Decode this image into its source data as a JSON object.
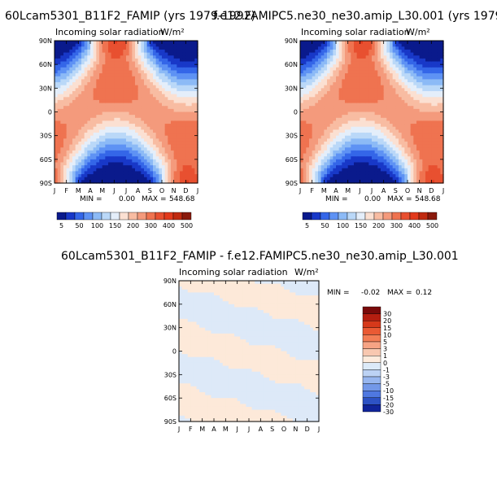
{
  "chart_data": [
    {
      "type": "heatmap",
      "title": "60Lcam5301_B11F2_FAMIP (yrs 1979-1992)",
      "subtitle": "Incoming solar radiation",
      "units": "W/m²",
      "x_ticks": [
        "J",
        "F",
        "M",
        "A",
        "M",
        "J",
        "J",
        "A",
        "S",
        "O",
        "N",
        "D",
        "J"
      ],
      "y_ticks": [
        "90N",
        "60N",
        "30N",
        "0",
        "30S",
        "60S",
        "90S"
      ],
      "stats": {
        "min_label": "MIN =",
        "min": "0.00",
        "max_label": "MAX =",
        "max": "548.68"
      },
      "colorbar_labels": [
        "5",
        "50",
        "100",
        "150",
        "200",
        "300",
        "400",
        "500"
      ]
    },
    {
      "type": "heatmap",
      "title": "f.e12.FAMIPC5.ne30_ne30.amip_L30.001 (yrs 1979-",
      "subtitle": "Incoming solar radiation",
      "units": "W/m²",
      "x_ticks": [
        "J",
        "F",
        "M",
        "A",
        "M",
        "J",
        "J",
        "A",
        "S",
        "O",
        "N",
        "D",
        "J"
      ],
      "y_ticks": [
        "90N",
        "60N",
        "30N",
        "0",
        "30S",
        "60S",
        "90S"
      ],
      "stats": {
        "min_label": "MIN =",
        "min": "0.00",
        "max_label": "MAX =",
        "max": "548.68"
      },
      "colorbar_labels": [
        "5",
        "50",
        "100",
        "150",
        "200",
        "300",
        "400",
        "500"
      ]
    },
    {
      "type": "heatmap",
      "title": "60Lcam5301_B11F2_FAMIP - f.e12.FAMIPC5.ne30_ne30.amip_L30.001",
      "subtitle": "Incoming solar radiation",
      "units": "W/m²",
      "x_ticks": [
        "J",
        "F",
        "M",
        "A",
        "M",
        "J",
        "J",
        "A",
        "S",
        "O",
        "N",
        "D",
        "J"
      ],
      "y_ticks": [
        "90N",
        "60N",
        "30N",
        "0",
        "30S",
        "60S",
        "90S"
      ],
      "stats": {
        "min_label": "MIN =",
        "min": "-0.02",
        "max_label": "MAX =",
        "max": "0.12"
      },
      "colorbar_labels": [
        "30",
        "20",
        "15",
        "10",
        "5",
        "3",
        "1",
        "0",
        "-1",
        "-3",
        "-5",
        "-10",
        "-15",
        "-20",
        "-30"
      ]
    }
  ],
  "colors": {
    "abs_scale": [
      "#0a1a8c",
      "#1838c8",
      "#3466e8",
      "#5e92f4",
      "#8cbaf6",
      "#bad8f8",
      "#e4eefa",
      "#fbe0d2",
      "#f8bca2",
      "#f49a7c",
      "#ef7350",
      "#e85030",
      "#e23a1c",
      "#c02a10",
      "#8a1a0c"
    ],
    "diff_scale": [
      "#7a0a0a",
      "#b51e10",
      "#d6391a",
      "#ea5a34",
      "#f37e56",
      "#f6a384",
      "#f8c8b0",
      "#fdebdc",
      "#dceaf8",
      "#bcd2f4",
      "#97b6ef",
      "#7398e8",
      "#4f78e0",
      "#2d52c4",
      "#10249a"
    ],
    "diff_positive": "#fde9d9",
    "diff_negative": "#dde9f8"
  }
}
